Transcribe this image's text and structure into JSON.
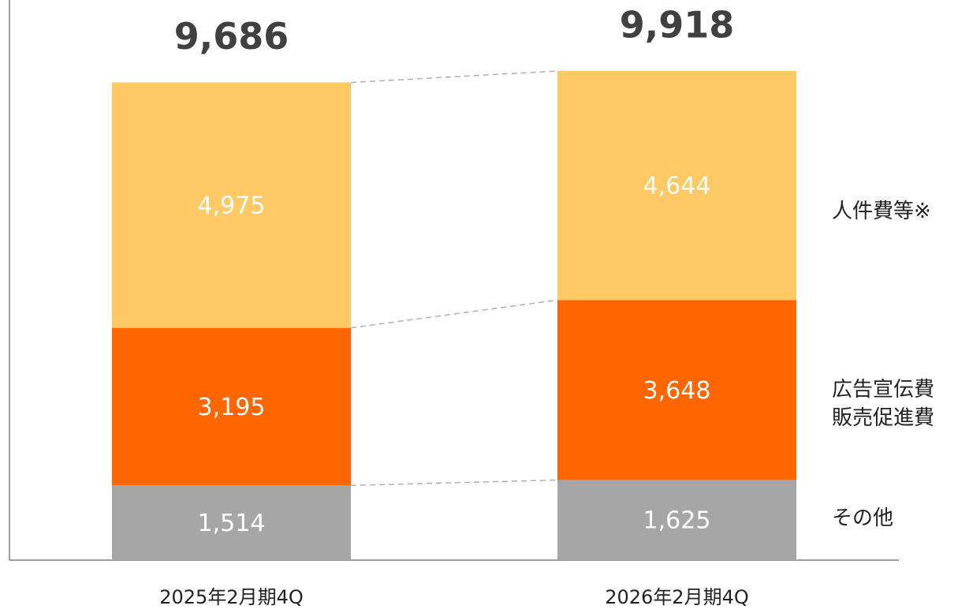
{
  "chart_data": {
    "type": "stacked_bar",
    "categories": [
      "2025年2月期4Q",
      "2026年2月期4Q"
    ],
    "series": [
      {
        "name": "その他",
        "color": "#a6a6a6",
        "values": [
          1514,
          1625
        ],
        "value_labels": [
          "1,514",
          "1,625"
        ]
      },
      {
        "name": "広告宣伝費\n販売促進費",
        "color": "#ff6600",
        "values": [
          3195,
          3648
        ],
        "value_labels": [
          "3,195",
          "3,648"
        ]
      },
      {
        "name": "人件費等※",
        "color": "#ffc966",
        "values": [
          4975,
          4644
        ],
        "value_labels": [
          "4,975",
          "4,644"
        ]
      }
    ],
    "totals": [
      9686,
      9918
    ],
    "total_labels": [
      "9,686",
      "9,918"
    ]
  }
}
